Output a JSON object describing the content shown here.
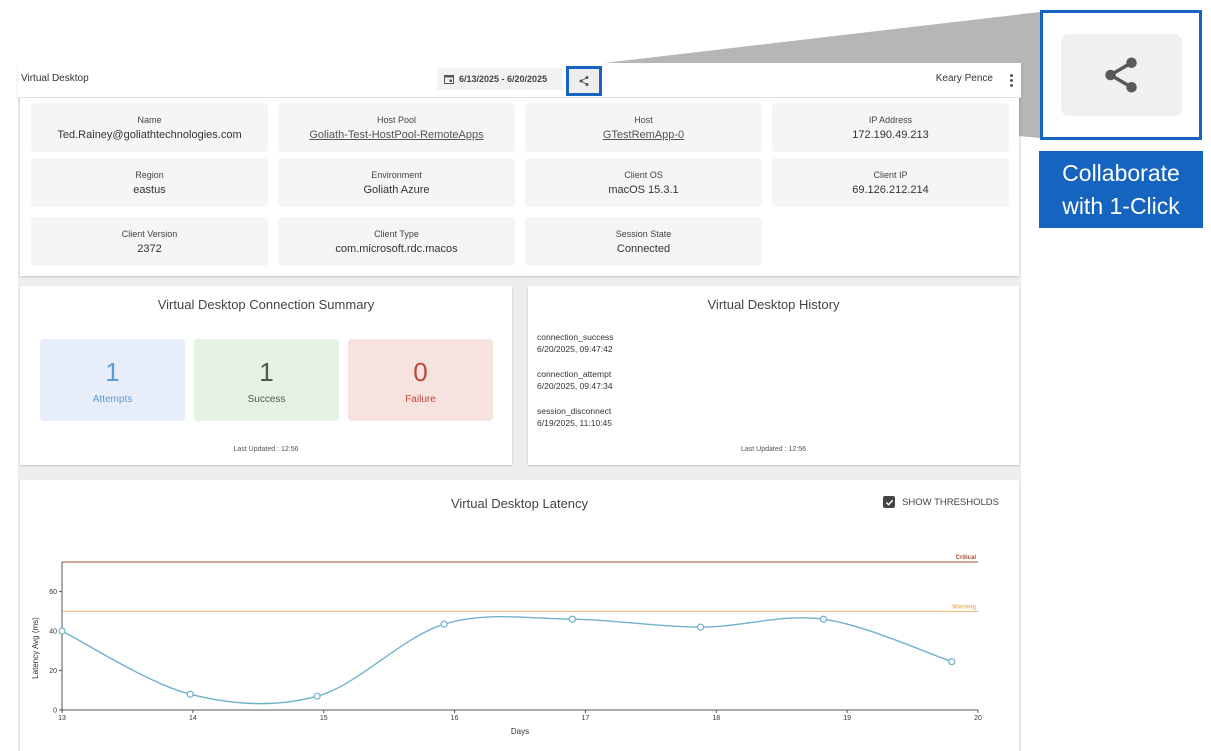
{
  "header": {
    "title": "Virtual Desktop",
    "date_range": "6/13/2025 - 6/20/2025",
    "user": "Keary Pence"
  },
  "callout": {
    "label_line1": "Collaborate",
    "label_line2": "with 1-Click"
  },
  "details": [
    {
      "label": "Name",
      "value": "Ted.Rainey@goliathtechnologies.com",
      "link": false
    },
    {
      "label": "Host Pool",
      "value": "Goliath-Test-HostPool-RemoteApps",
      "link": true
    },
    {
      "label": "Host",
      "value": "GTestRemApp-0",
      "link": true
    },
    {
      "label": "IP Address",
      "value": "172.190.49.213",
      "link": false
    },
    {
      "label": "Region",
      "value": "eastus",
      "link": false
    },
    {
      "label": "Environment",
      "value": "Goliath Azure",
      "link": false
    },
    {
      "label": "Client OS",
      "value": "macOS 15.3.1",
      "link": false
    },
    {
      "label": "Client IP",
      "value": "69.126.212.214",
      "link": false
    },
    {
      "label": "Client Version",
      "value": "2372",
      "link": false
    },
    {
      "label": "Client Type",
      "value": "com.microsoft.rdc.macos",
      "link": false
    },
    {
      "label": "Session State",
      "value": "Connected",
      "link": false
    }
  ],
  "summary": {
    "title": "Virtual Desktop Connection Summary",
    "stats": [
      {
        "value": "1",
        "label": "Attempts",
        "color": "#5b9bd5",
        "bg": "#e8eef9"
      },
      {
        "value": "1",
        "label": "Success",
        "color": "#555555",
        "bg": "#e6f2e3"
      },
      {
        "value": "0",
        "label": "Failure",
        "color": "#c0483a",
        "bg": "#f6e2df"
      }
    ],
    "last_updated": "Last Updated : 12:56"
  },
  "history": {
    "title": "Virtual Desktop History",
    "events": [
      {
        "event": "connection_success",
        "time": "6/20/2025, 09:47:42"
      },
      {
        "event": "connection_attempt",
        "time": "6/20/2025, 09:47:34"
      },
      {
        "event": "session_disconnect",
        "time": "6/19/2025, 11:10:45"
      }
    ],
    "last_updated": "Last Updated : 12:56"
  },
  "latency": {
    "title": "Virtual Desktop Latency",
    "show_thresholds_label": "SHOW THRESHOLDS",
    "show_thresholds": true
  },
  "chart_data": {
    "type": "line",
    "title": "Virtual Desktop Latency",
    "xlabel": "Days",
    "ylabel": "Latency Avg (ms)",
    "xlim": [
      13,
      20
    ],
    "ylim": [
      0,
      75
    ],
    "x_ticks": [
      13,
      14,
      15,
      16,
      17,
      18,
      19,
      20
    ],
    "y_ticks": [
      0,
      20,
      40,
      60
    ],
    "series": [
      {
        "color": "#6fb1c9",
        "x": [
          13,
          13.98,
          14.95,
          15.92,
          16.9,
          17.88,
          18.82,
          19.8
        ],
        "y": [
          40,
          8,
          7,
          43.5,
          46,
          42,
          46,
          24.5
        ]
      }
    ],
    "thresholds": [
      {
        "name": "Critical",
        "value": 75,
        "color": "#a0522d"
      },
      {
        "name": "Warning",
        "value": 50,
        "color": "#f0b66a"
      }
    ]
  }
}
